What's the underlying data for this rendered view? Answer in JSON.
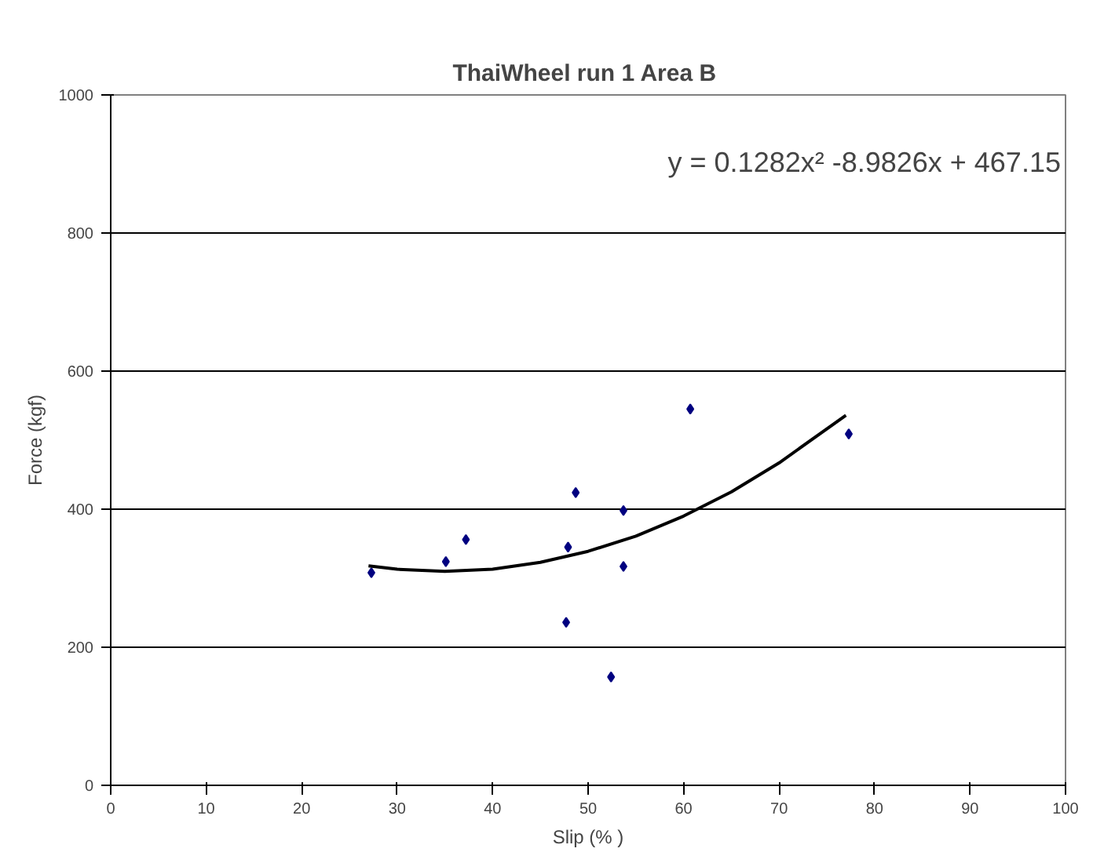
{
  "chart_data": {
    "type": "scatter",
    "title": "ThaiWheel run 1  Area B",
    "xlabel": "Slip (% )",
    "ylabel": "Force (kgf)",
    "annotations": [
      "y = 0.1282x² -8.9826x + 467.15"
    ],
    "series": [
      {
        "color": "#000080",
        "marker": "diamond",
        "x": [
          27.3,
          35.1,
          37.2,
          47.7,
          47.9,
          48.7,
          53.7,
          53.7,
          52.4,
          60.7,
          77.3
        ],
        "values": [
          308,
          324,
          356,
          236,
          345,
          424,
          398,
          317,
          157,
          545,
          509
        ]
      },
      {
        "type": "line",
        "color": "#000000",
        "x": [
          27,
          30,
          35,
          40,
          45,
          50,
          55,
          60,
          65,
          70,
          77
        ],
        "values": [
          318,
          313,
          310,
          313,
          323,
          339,
          361,
          390,
          425,
          467,
          536
        ]
      }
    ],
    "xlim": [
      0,
      100
    ],
    "xticks": [
      0,
      10,
      20,
      30,
      40,
      50,
      60,
      70,
      80,
      90,
      100
    ],
    "ylim": [
      0,
      1000
    ],
    "yticks": [
      0,
      200,
      400,
      600,
      800,
      1000
    ],
    "grid": "y"
  }
}
